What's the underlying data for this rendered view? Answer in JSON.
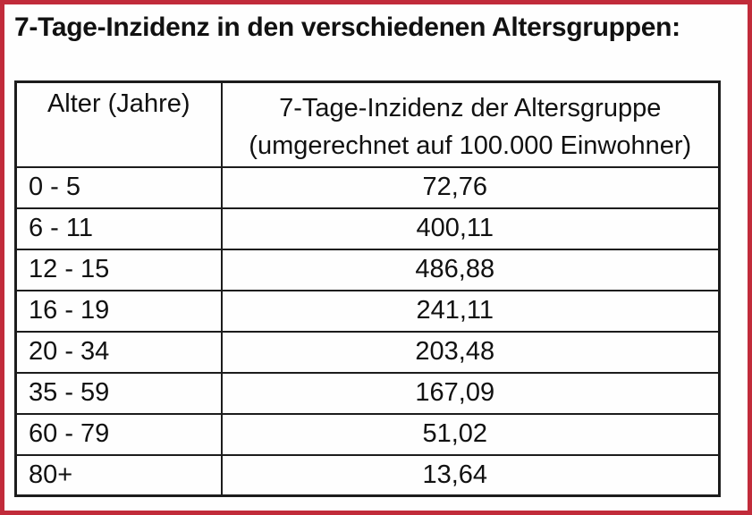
{
  "title": "7-Tage-Inzidenz in den verschiedenen Altersgruppen:",
  "table": {
    "headers": {
      "age": "Alter (Jahre)",
      "incidence_line1": "7-Tage-Inzidenz der Altersgruppe",
      "incidence_line2": "(umgerechnet auf 100.000 Einwohner)"
    },
    "rows": [
      {
        "age": "0 - 5",
        "incidence": "72,76"
      },
      {
        "age": "6 - 11",
        "incidence": "400,11"
      },
      {
        "age": "12 - 15",
        "incidence": "486,88"
      },
      {
        "age": "16 - 19",
        "incidence": "241,11"
      },
      {
        "age": "20 - 34",
        "incidence": "203,48"
      },
      {
        "age": "35 - 59",
        "incidence": "167,09"
      },
      {
        "age": "60 - 79",
        "incidence": "51,02"
      },
      {
        "age": "80+",
        "incidence": "13,64"
      }
    ]
  },
  "colors": {
    "frame": "#c12b3a",
    "table_border": "#1c1c1c",
    "text": "#111111",
    "background": "#fefefe"
  },
  "chart_data": {
    "type": "table",
    "title": "7-Tage-Inzidenz in den verschiedenen Altersgruppen",
    "columns": [
      "Alter (Jahre)",
      "7-Tage-Inzidenz der Altersgruppe (umgerechnet auf 100.000 Einwohner)"
    ],
    "categories": [
      "0 - 5",
      "6 - 11",
      "12 - 15",
      "16 - 19",
      "20 - 34",
      "35 - 59",
      "60 - 79",
      "80+"
    ],
    "values": [
      72.76,
      400.11,
      486.88,
      241.11,
      203.48,
      167.09,
      51.02,
      13.64
    ]
  }
}
